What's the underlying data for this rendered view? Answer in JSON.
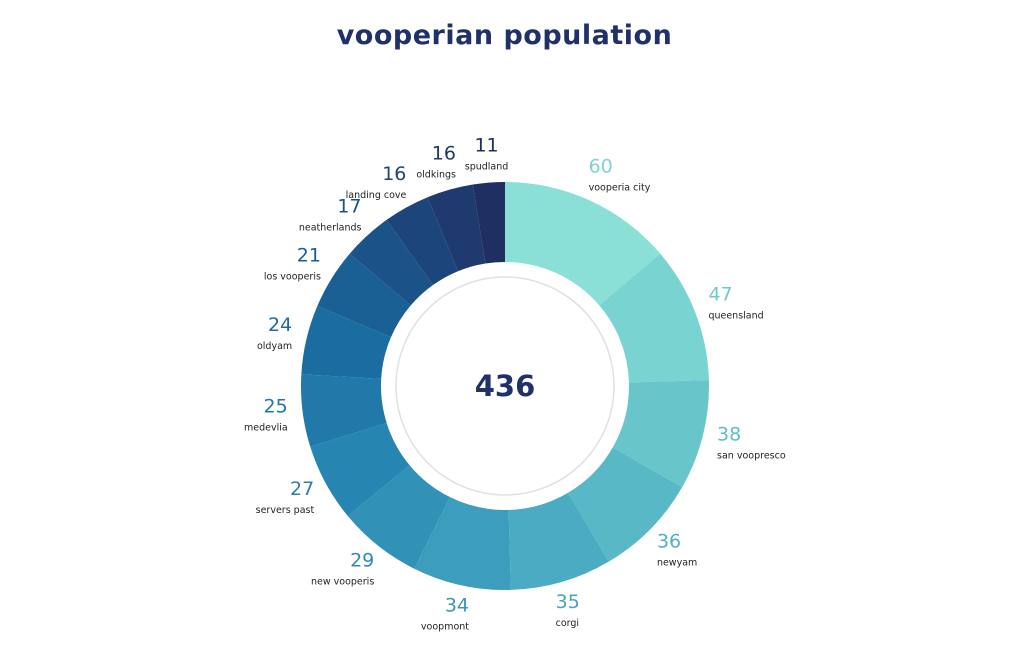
{
  "colors": {
    "title": "#1f3168",
    "total": "#1f3168",
    "inner_ring": "#dde0e8",
    "slices": [
      "#8adfd6",
      "#79d4d1",
      "#68c6cb",
      "#58b8c6",
      "#4aabc2",
      "#3d9dbd",
      "#3191b7",
      "#2785b1",
      "#2079a9",
      "#1b6ca0",
      "#1a6095",
      "#1b5388",
      "#1c467b",
      "#1e3a6e",
      "#1f2f61"
    ],
    "value_labels": [
      "#7fd4cf",
      "#6fcbca",
      "#5ebfc6",
      "#4fb2c1",
      "#44a6bd",
      "#3898b7",
      "#2f8cb1",
      "#2681ab",
      "#2177a5",
      "#1d6b9b",
      "#1c5e90",
      "#1c5283",
      "#1d4577",
      "#1e3a6b",
      "#1f2f60"
    ]
  },
  "chart_data": {
    "type": "pie",
    "variant": "donut",
    "title": "vooperian population",
    "center_label": "436",
    "categories": [
      "vooperia city",
      "queensland",
      "san voopresco",
      "newyam",
      "corgi",
      "voopmont",
      "new vooperis",
      "servers past",
      "medevlia",
      "oldyam",
      "los vooperis",
      "neatherlands",
      "landing cove",
      "oldkings",
      "spudland"
    ],
    "values": [
      60,
      47,
      38,
      36,
      35,
      34,
      29,
      27,
      25,
      24,
      21,
      17,
      16,
      16,
      11
    ],
    "value_labels": [
      "60",
      "47",
      "38",
      "36",
      "35",
      "34",
      "29",
      "27",
      "25",
      "24",
      "21",
      "17",
      "16",
      "16",
      "11"
    ],
    "legend": "none"
  }
}
